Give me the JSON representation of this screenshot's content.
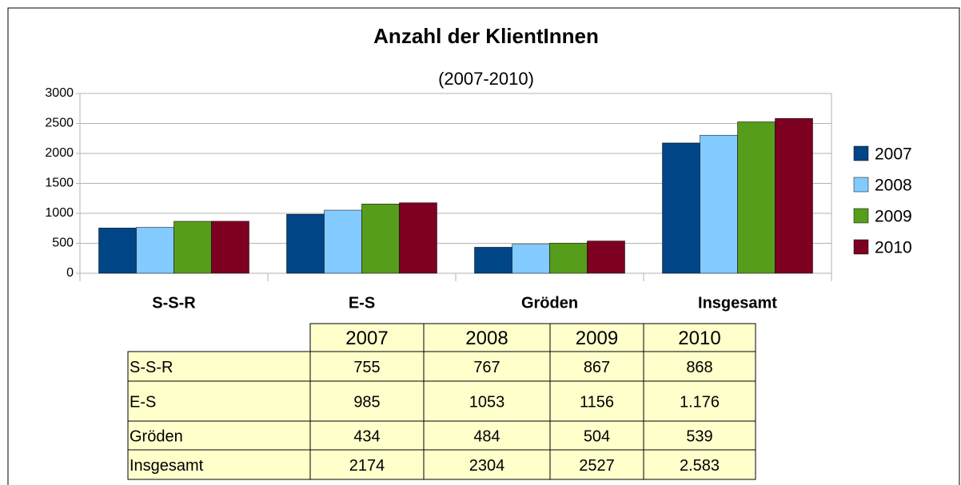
{
  "chart_data": {
    "type": "bar",
    "title": "Anzahl der KlientInnen",
    "subtitle": "(2007-2010)",
    "categories": [
      "S-S-R",
      "E-S",
      "Gröden",
      "Insgesamt"
    ],
    "series": [
      {
        "name": "2007",
        "color": "#004586",
        "values": [
          755,
          985,
          434,
          2174
        ]
      },
      {
        "name": "2008",
        "color": "#83caff",
        "values": [
          767,
          1053,
          484,
          2304
        ]
      },
      {
        "name": "2009",
        "color": "#579d1c",
        "values": [
          867,
          1156,
          504,
          2527
        ]
      },
      {
        "name": "2010",
        "color": "#7e0021",
        "values": [
          868,
          1176,
          539,
          2583
        ],
        "value_labels": [
          "868",
          "1.176",
          "539",
          "2.583"
        ]
      }
    ],
    "ylim": [
      0,
      3000
    ],
    "yticks": [
      0,
      500,
      1000,
      1500,
      2000,
      2500,
      3000
    ],
    "grid": true,
    "legend": "right"
  }
}
